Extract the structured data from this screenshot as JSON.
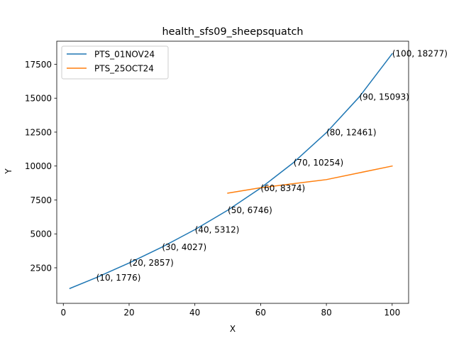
{
  "chart_data": {
    "type": "line",
    "title": "health_sfs09_sheepsquatch",
    "xlabel": "X",
    "ylabel": "Y",
    "xlim": [
      -2,
      105
    ],
    "ylim": [
      -120,
      19200
    ],
    "xticks": [
      0,
      20,
      40,
      60,
      80,
      100
    ],
    "yticks": [
      2500,
      5000,
      7500,
      10000,
      12500,
      15000,
      17500
    ],
    "legend_position": "top-left",
    "series": [
      {
        "name": "PTS_01NOV24",
        "color": "#1f77b4",
        "x": [
          2,
          10,
          20,
          30,
          40,
          50,
          60,
          70,
          80,
          90,
          100
        ],
        "y": [
          980,
          1776,
          2857,
          4027,
          5312,
          6746,
          8374,
          10254,
          12461,
          15093,
          18277
        ]
      },
      {
        "name": "PTS_25OCT24",
        "color": "#ff7f0e",
        "x": [
          50,
          60,
          70,
          80,
          90,
          100
        ],
        "y": [
          8000,
          8400,
          8700,
          9000,
          9500,
          10000
        ]
      }
    ],
    "annotations": [
      {
        "x": 10,
        "y": 1776,
        "text": "(10, 1776)"
      },
      {
        "x": 20,
        "y": 2857,
        "text": "(20, 2857)"
      },
      {
        "x": 30,
        "y": 4027,
        "text": "(30, 4027)"
      },
      {
        "x": 40,
        "y": 5312,
        "text": "(40, 5312)"
      },
      {
        "x": 50,
        "y": 6746,
        "text": "(50, 6746)"
      },
      {
        "x": 60,
        "y": 8374,
        "text": "(60, 8374)"
      },
      {
        "x": 70,
        "y": 10254,
        "text": "(70, 10254)"
      },
      {
        "x": 80,
        "y": 12461,
        "text": "(80, 12461)"
      },
      {
        "x": 90,
        "y": 15093,
        "text": "(90, 15093)"
      },
      {
        "x": 100,
        "y": 18277,
        "text": "(100, 18277)"
      }
    ]
  }
}
